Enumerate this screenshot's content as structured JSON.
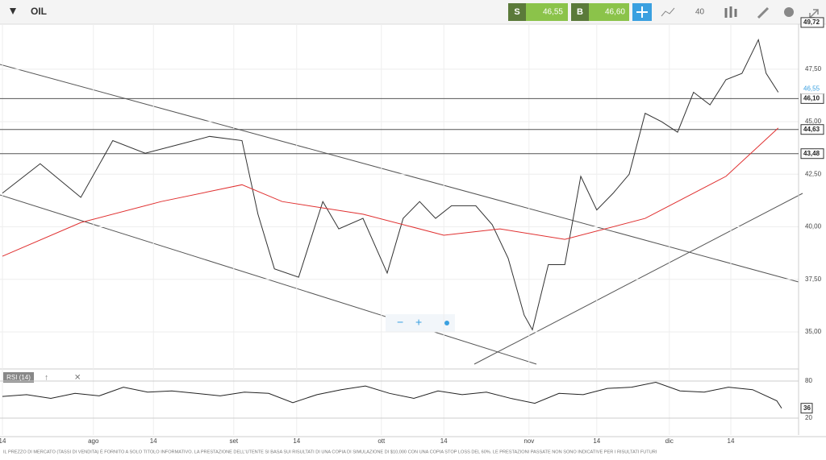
{
  "toolbar": {
    "instrument": "OIL",
    "sell_label": "S",
    "sell_price": "46,55",
    "buy_label": "B",
    "buy_price": "46,60",
    "zoom_level": "40"
  },
  "chart_data": {
    "type": "line",
    "color_up": "#4a9a3a",
    "ylim": [
      33.35,
      49.64
    ],
    "yticks": [
      {
        "value": 35,
        "label": "35,00"
      },
      {
        "value": 37.5,
        "label": "37,50"
      },
      {
        "value": 40,
        "label": "40,00"
      },
      {
        "value": 42.5,
        "label": "42,50"
      },
      {
        "value": 45,
        "label": "45,00"
      },
      {
        "value": 47.5,
        "label": "47,50"
      }
    ],
    "xlim": [
      0,
      164.5
    ],
    "xticks": [
      {
        "value": 0,
        "label": "14"
      },
      {
        "value": 18.8,
        "label": "ago"
      },
      {
        "value": 31.2,
        "label": "14"
      },
      {
        "value": 47.8,
        "label": "set"
      },
      {
        "value": 60.8,
        "label": "14"
      },
      {
        "value": 78.3,
        "label": "ott"
      },
      {
        "value": 91.2,
        "label": "14"
      },
      {
        "value": 108.8,
        "label": "nov"
      },
      {
        "value": 122.8,
        "label": "14"
      },
      {
        "value": 137.8,
        "label": "dic"
      },
      {
        "value": 150.5,
        "label": "14"
      }
    ],
    "levels": [
      {
        "value": 49.72,
        "label": "49,72"
      },
      {
        "value": 46.1,
        "label": "46,10"
      },
      {
        "value": 44.63,
        "label": "44,63"
      },
      {
        "value": 43.48,
        "label": "43,48"
      }
    ],
    "current": {
      "value": 46.55,
      "label": "46,55"
    },
    "series": [
      {
        "color": "#333333",
        "x": [
          0,
          7.8,
          16.2,
          22.8,
          29.5,
          36.2,
          42.8,
          49.5,
          52.8,
          56.2,
          61.2,
          66.2,
          69.5,
          74.5,
          79.5,
          82.8,
          86.2,
          89.5,
          92.8,
          97.8,
          101.2,
          104.5,
          107.8,
          109.5,
          112.8,
          116.2,
          119.5,
          122.8,
          126.2,
          129.5,
          132.8,
          136.2,
          139.5,
          142.8,
          146.2,
          149.5,
          152.8,
          156.2,
          157.8,
          160.3
        ],
        "values": [
          41.6,
          43.0,
          41.4,
          44.1,
          43.5,
          43.9,
          44.3,
          44.1,
          40.6,
          38.0,
          37.6,
          41.2,
          39.9,
          40.4,
          37.8,
          40.4,
          41.2,
          40.4,
          41.0,
          41.0,
          40.1,
          38.5,
          35.8,
          35.1,
          38.2,
          38.2,
          42.4,
          40.8,
          41.6,
          42.5,
          45.4,
          45.0,
          44.5,
          46.4,
          45.8,
          47.0,
          47.3,
          48.9,
          47.3,
          46.4
        ]
      },
      {
        "color": "#e03030",
        "x": [
          0,
          16.2,
          32.8,
          49.5,
          57.8,
          74.5,
          91.2,
          102.8,
          116.2,
          132.8,
          149.5,
          160.3
        ],
        "values": [
          38.6,
          40.2,
          41.2,
          42.0,
          41.2,
          40.6,
          39.6,
          39.9,
          39.4,
          40.4,
          42.4,
          44.7
        ]
      }
    ]
  },
  "rsi": {
    "title": "RSI (14)",
    "ylim": [
      -7.4,
      94.3
    ],
    "yticks": [
      80,
      20
    ],
    "last_label": "36",
    "x": [
      0,
      5,
      10,
      15,
      20,
      25,
      30,
      35,
      40,
      45,
      50,
      55,
      60,
      65,
      70,
      75,
      80,
      85,
      90,
      95,
      100,
      105,
      110,
      115,
      120,
      125,
      130,
      135,
      140,
      145,
      150,
      155,
      160,
      161
    ],
    "values": [
      55,
      58,
      52,
      60,
      56,
      70,
      62,
      64,
      60,
      56,
      62,
      60,
      45,
      58,
      66,
      72,
      60,
      52,
      64,
      58,
      62,
      52,
      44,
      60,
      58,
      68,
      70,
      78,
      64,
      62,
      70,
      66,
      48,
      36
    ]
  },
  "disclaimer": "IL PREZZO DI MERCATO (TASSI DI VENDITA) È FORNITO A SOLO TITOLO INFORMATIVO. LA PRESTAZIONE DELL'UTENTE SI BASA SUI RISULTATI DI UNA COPIA DI SIMULAZIONE DI $10,000 CON UNA COPIA STOP LOSS DEL 60%. LE PRESTAZIONI PASSATE NON SONO INDICATIVE PER I RISULTATI FUTURI"
}
